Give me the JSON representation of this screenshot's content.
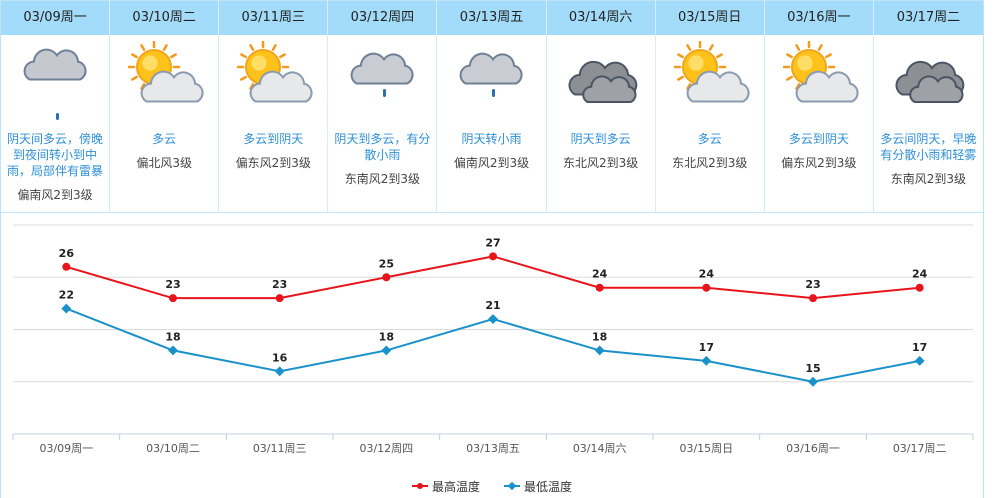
{
  "days": [
    {
      "date": "03/09周一",
      "icon": "overcast-rain-icon",
      "desc": "阴天间多云，傍晚到夜间转小到中雨，局部伴有雷暴",
      "wind": "偏南风2到3级"
    },
    {
      "date": "03/10周二",
      "icon": "partly-cloudy-icon",
      "desc": "多云",
      "wind": "偏北风3级"
    },
    {
      "date": "03/11周三",
      "icon": "partly-cloudy-icon",
      "desc": "多云到阴天",
      "wind": "偏东风2到3级"
    },
    {
      "date": "03/12周四",
      "icon": "cloud-rain-icon",
      "desc": "阴天到多云，有分散小雨",
      "wind": "东南风2到3级"
    },
    {
      "date": "03/13周五",
      "icon": "cloud-rain-icon",
      "desc": "阴天转小雨",
      "wind": "偏南风2到3级"
    },
    {
      "date": "03/14周六",
      "icon": "dark-cloud-icon",
      "desc": "阴天到多云",
      "wind": "东北风2到3级"
    },
    {
      "date": "03/15周日",
      "icon": "partly-cloudy-icon",
      "desc": "多云",
      "wind": "东北风2到3级"
    },
    {
      "date": "03/16周一",
      "icon": "partly-cloudy-icon",
      "desc": "多云到阴天",
      "wind": "偏东风2到3级"
    },
    {
      "date": "03/17周二",
      "icon": "dark-cloud-icon",
      "desc": "多云间阴天，早晚有分散小雨和轻雾",
      "wind": "东南风2到3级"
    }
  ],
  "chart_data": {
    "type": "line",
    "categories": [
      "03/09周一",
      "03/10周二",
      "03/11周三",
      "03/12周四",
      "03/13周五",
      "03/14周六",
      "03/15周日",
      "03/16周一",
      "03/17周二"
    ],
    "series": [
      {
        "name": "最高温度",
        "values": [
          26,
          23,
          23,
          25,
          27,
          24,
          24,
          23,
          24
        ],
        "color": "#e8141c",
        "marker": "circle"
      },
      {
        "name": "最低温度",
        "values": [
          22,
          18,
          16,
          18,
          21,
          18,
          17,
          15,
          17
        ],
        "color": "#1a91c9",
        "marker": "diamond"
      }
    ],
    "ylim": [
      10,
      30
    ],
    "grid": true,
    "legend_position": "bottom-center"
  },
  "legend": {
    "high_label": "最高温度",
    "low_label": "最低温度"
  },
  "colors": {
    "header_bg": "#a3dcfa",
    "desc_text": "#2f8fd6",
    "high": "#e8141c",
    "low": "#1a91c9"
  }
}
